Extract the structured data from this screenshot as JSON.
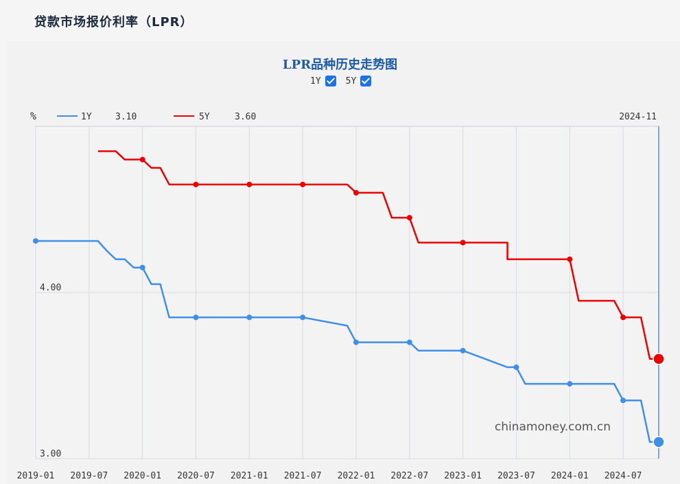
{
  "page": {
    "title": "贷款市场报价利率（LPR）"
  },
  "toggles": [
    {
      "label": "1Y",
      "checked": true
    },
    {
      "label": "5Y",
      "checked": true
    }
  ],
  "watermark": "chinamoney.com.cn",
  "colors": {
    "y1": "#3f8ee8",
    "y5": "#ee0000",
    "grid": "#d8dbe3",
    "cursor": "#5b8fd6",
    "title": "#1a5aa8"
  },
  "chart_data": {
    "type": "line",
    "title": "LPR品种历史走势图",
    "ylabel": "%",
    "cursor_date": "2024-11",
    "ylim": [
      3.0,
      5.0
    ],
    "y_ticks": [
      "4.00",
      "3.00"
    ],
    "x_ticks": [
      "2019-01",
      "2019-07",
      "2020-01",
      "2020-07",
      "2021-01",
      "2021-07",
      "2022-01",
      "2022-07",
      "2023-01",
      "2023-07",
      "2024-01",
      "2024-07"
    ],
    "series": [
      {
        "name": "1Y",
        "current_value": "3.10",
        "points": [
          [
            "2019-01",
            4.31
          ],
          [
            "2019-08",
            4.31
          ],
          [
            "2019-09",
            4.25
          ],
          [
            "2019-10",
            4.2
          ],
          [
            "2019-11",
            4.2
          ],
          [
            "2019-12",
            4.15
          ],
          [
            "2020-01",
            4.15
          ],
          [
            "2020-02",
            4.05
          ],
          [
            "2020-03",
            4.05
          ],
          [
            "2020-04",
            3.85
          ],
          [
            "2020-07",
            3.85
          ],
          [
            "2021-01",
            3.85
          ],
          [
            "2021-07",
            3.85
          ],
          [
            "2021-12",
            3.8
          ],
          [
            "2022-01",
            3.7
          ],
          [
            "2022-07",
            3.7
          ],
          [
            "2022-08",
            3.65
          ],
          [
            "2023-01",
            3.65
          ],
          [
            "2023-06",
            3.55
          ],
          [
            "2023-07",
            3.55
          ],
          [
            "2023-08",
            3.45
          ],
          [
            "2024-01",
            3.45
          ],
          [
            "2024-06",
            3.45
          ],
          [
            "2024-07",
            3.35
          ],
          [
            "2024-09",
            3.35
          ],
          [
            "2024-10",
            3.1
          ],
          [
            "2024-11",
            3.1
          ]
        ],
        "markers": [
          "2019-01",
          "2019-07",
          "2020-01",
          "2020-07",
          "2021-01",
          "2021-07",
          "2022-01",
          "2022-07",
          "2023-01",
          "2023-07",
          "2024-01",
          "2024-07",
          "2024-11"
        ]
      },
      {
        "name": "5Y",
        "current_value": "3.60",
        "points": [
          [
            "2019-08",
            4.85
          ],
          [
            "2019-10",
            4.85
          ],
          [
            "2019-11",
            4.8
          ],
          [
            "2020-01",
            4.8
          ],
          [
            "2020-02",
            4.75
          ],
          [
            "2020-03",
            4.75
          ],
          [
            "2020-04",
            4.65
          ],
          [
            "2020-07",
            4.65
          ],
          [
            "2021-01",
            4.65
          ],
          [
            "2021-07",
            4.65
          ],
          [
            "2021-12",
            4.65
          ],
          [
            "2022-01",
            4.6
          ],
          [
            "2022-04",
            4.6
          ],
          [
            "2022-05",
            4.45
          ],
          [
            "2022-07",
            4.45
          ],
          [
            "2022-08",
            4.3
          ],
          [
            "2023-01",
            4.3
          ],
          [
            "2023-06",
            4.3
          ],
          [
            "2023-06",
            4.2
          ],
          [
            "2024-01",
            4.2
          ],
          [
            "2024-02",
            3.95
          ],
          [
            "2024-06",
            3.95
          ],
          [
            "2024-07",
            3.85
          ],
          [
            "2024-09",
            3.85
          ],
          [
            "2024-10",
            3.6
          ],
          [
            "2024-11",
            3.6
          ]
        ],
        "markers": [
          "2020-01",
          "2020-07",
          "2021-01",
          "2021-07",
          "2022-01",
          "2022-07",
          "2023-01",
          "2023-07",
          "2024-01",
          "2024-07",
          "2024-11"
        ]
      }
    ]
  }
}
